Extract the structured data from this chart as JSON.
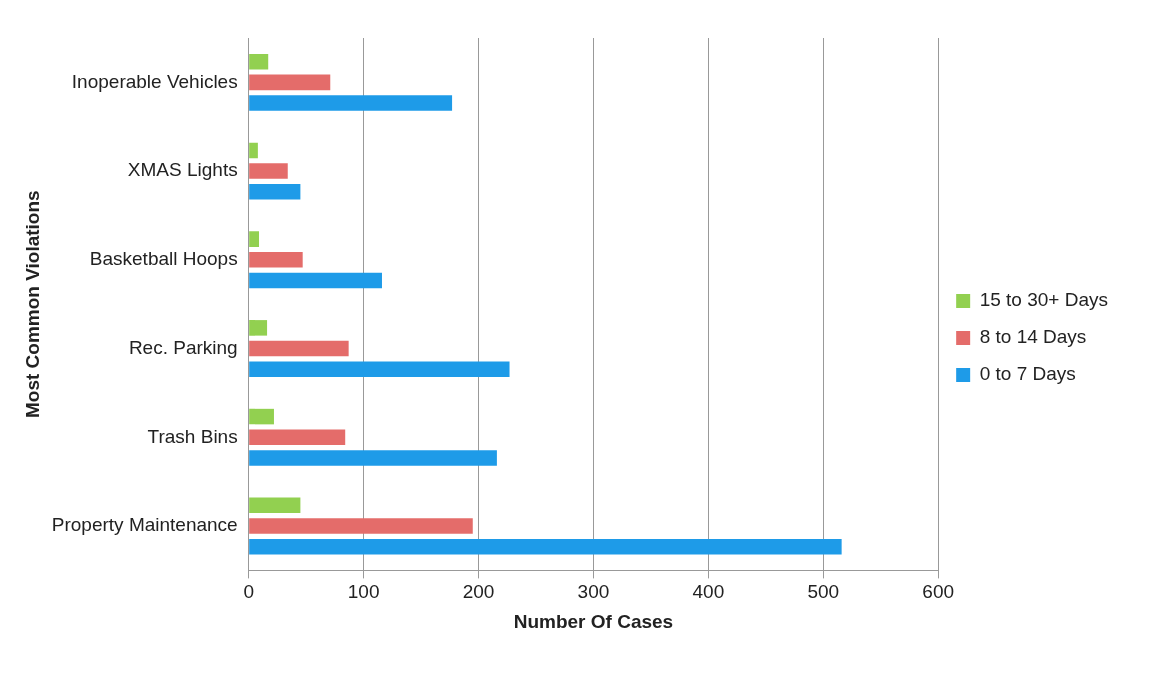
{
  "chart_data": {
    "type": "bar",
    "orientation": "horizontal",
    "xlabel": "Number Of Cases",
    "ylabel": "Most Common Violations",
    "categories": [
      "Inoperable Vehicles",
      "XMAS Lights",
      "Basketball Hoops",
      "Rec. Parking",
      "Trash Bins",
      "Property Maintenance"
    ],
    "series": [
      {
        "name": "15 to 30+ Days",
        "color": "#92d050",
        "values": [
          17,
          8,
          9,
          16,
          22,
          45
        ]
      },
      {
        "name": "8 to 14 Days",
        "color": "#e46c6a",
        "values": [
          71,
          34,
          47,
          87,
          84,
          195
        ]
      },
      {
        "name": "0 to 7 Days",
        "color": "#1e9be8",
        "values": [
          177,
          45,
          116,
          227,
          216,
          516
        ]
      }
    ],
    "xlim": [
      0,
      600
    ],
    "xticks": [
      0,
      100,
      200,
      300,
      400,
      500,
      600
    ],
    "grid": "x",
    "legend": "right"
  }
}
